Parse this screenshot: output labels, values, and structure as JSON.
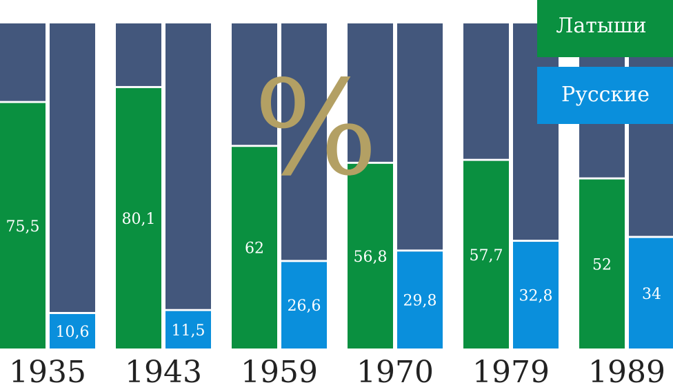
{
  "chart_data": {
    "type": "bar",
    "stacked_to": 100,
    "categories": [
      "1935",
      "1943",
      "1959",
      "1970",
      "1979",
      "1989"
    ],
    "series": [
      {
        "name": "Латыши",
        "values": [
          75.5,
          80.1,
          62,
          56.8,
          57.7,
          52
        ],
        "labels": [
          "75,5",
          "80,1",
          "62",
          "56,8",
          "57,7",
          "52"
        ],
        "color": "#0a9040"
      },
      {
        "name": "Русские",
        "values": [
          10.6,
          11.5,
          26.6,
          29.8,
          32.8,
          34
        ],
        "labels": [
          "10,6",
          "11,5",
          "26,6",
          "29,8",
          "32,8",
          "34"
        ],
        "color": "#0a8fdc"
      }
    ],
    "remainder_color": "#43577c",
    "unit_symbol": "%",
    "ylim": [
      0,
      100
    ],
    "grid": false,
    "legend": "top-right"
  }
}
